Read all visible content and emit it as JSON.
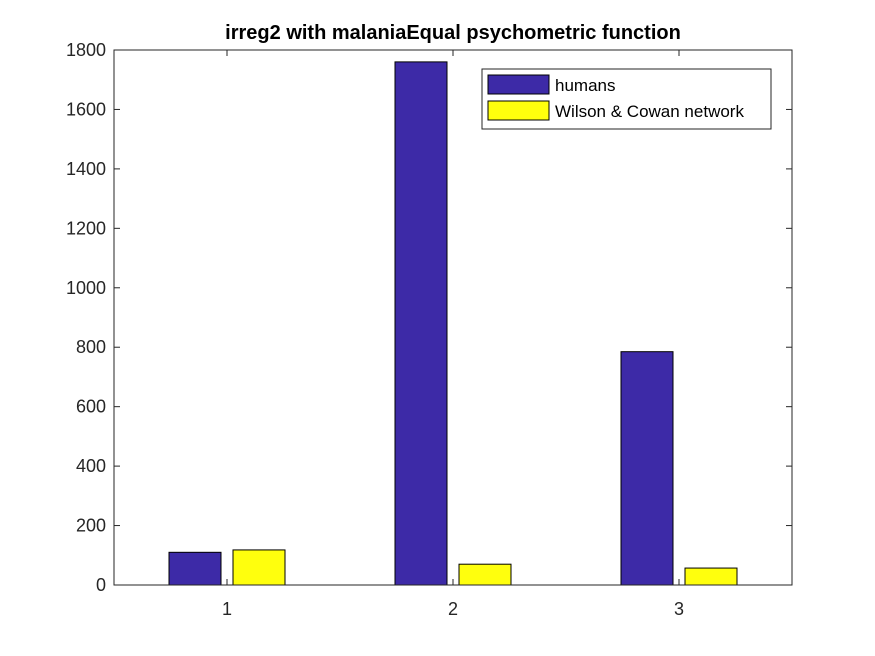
{
  "chart_data": {
    "type": "bar",
    "title": "irreg2 with malaniaEqual psychometric function",
    "xlabel": "",
    "ylabel": "",
    "categories": [
      "1",
      "2",
      "3"
    ],
    "series": [
      {
        "name": "humans",
        "color": "#3d2aa7",
        "values": [
          110,
          1760,
          785
        ]
      },
      {
        "name": "Wilson & Cowan network",
        "color": "#ffff0d",
        "values": [
          118,
          70,
          57
        ]
      }
    ],
    "ylim": [
      0,
      1800
    ],
    "yticks": [
      "0",
      "200",
      "400",
      "600",
      "800",
      "1000",
      "1200",
      "1400",
      "1600",
      "1800"
    ],
    "grid": false,
    "legend_position": "top-right"
  }
}
